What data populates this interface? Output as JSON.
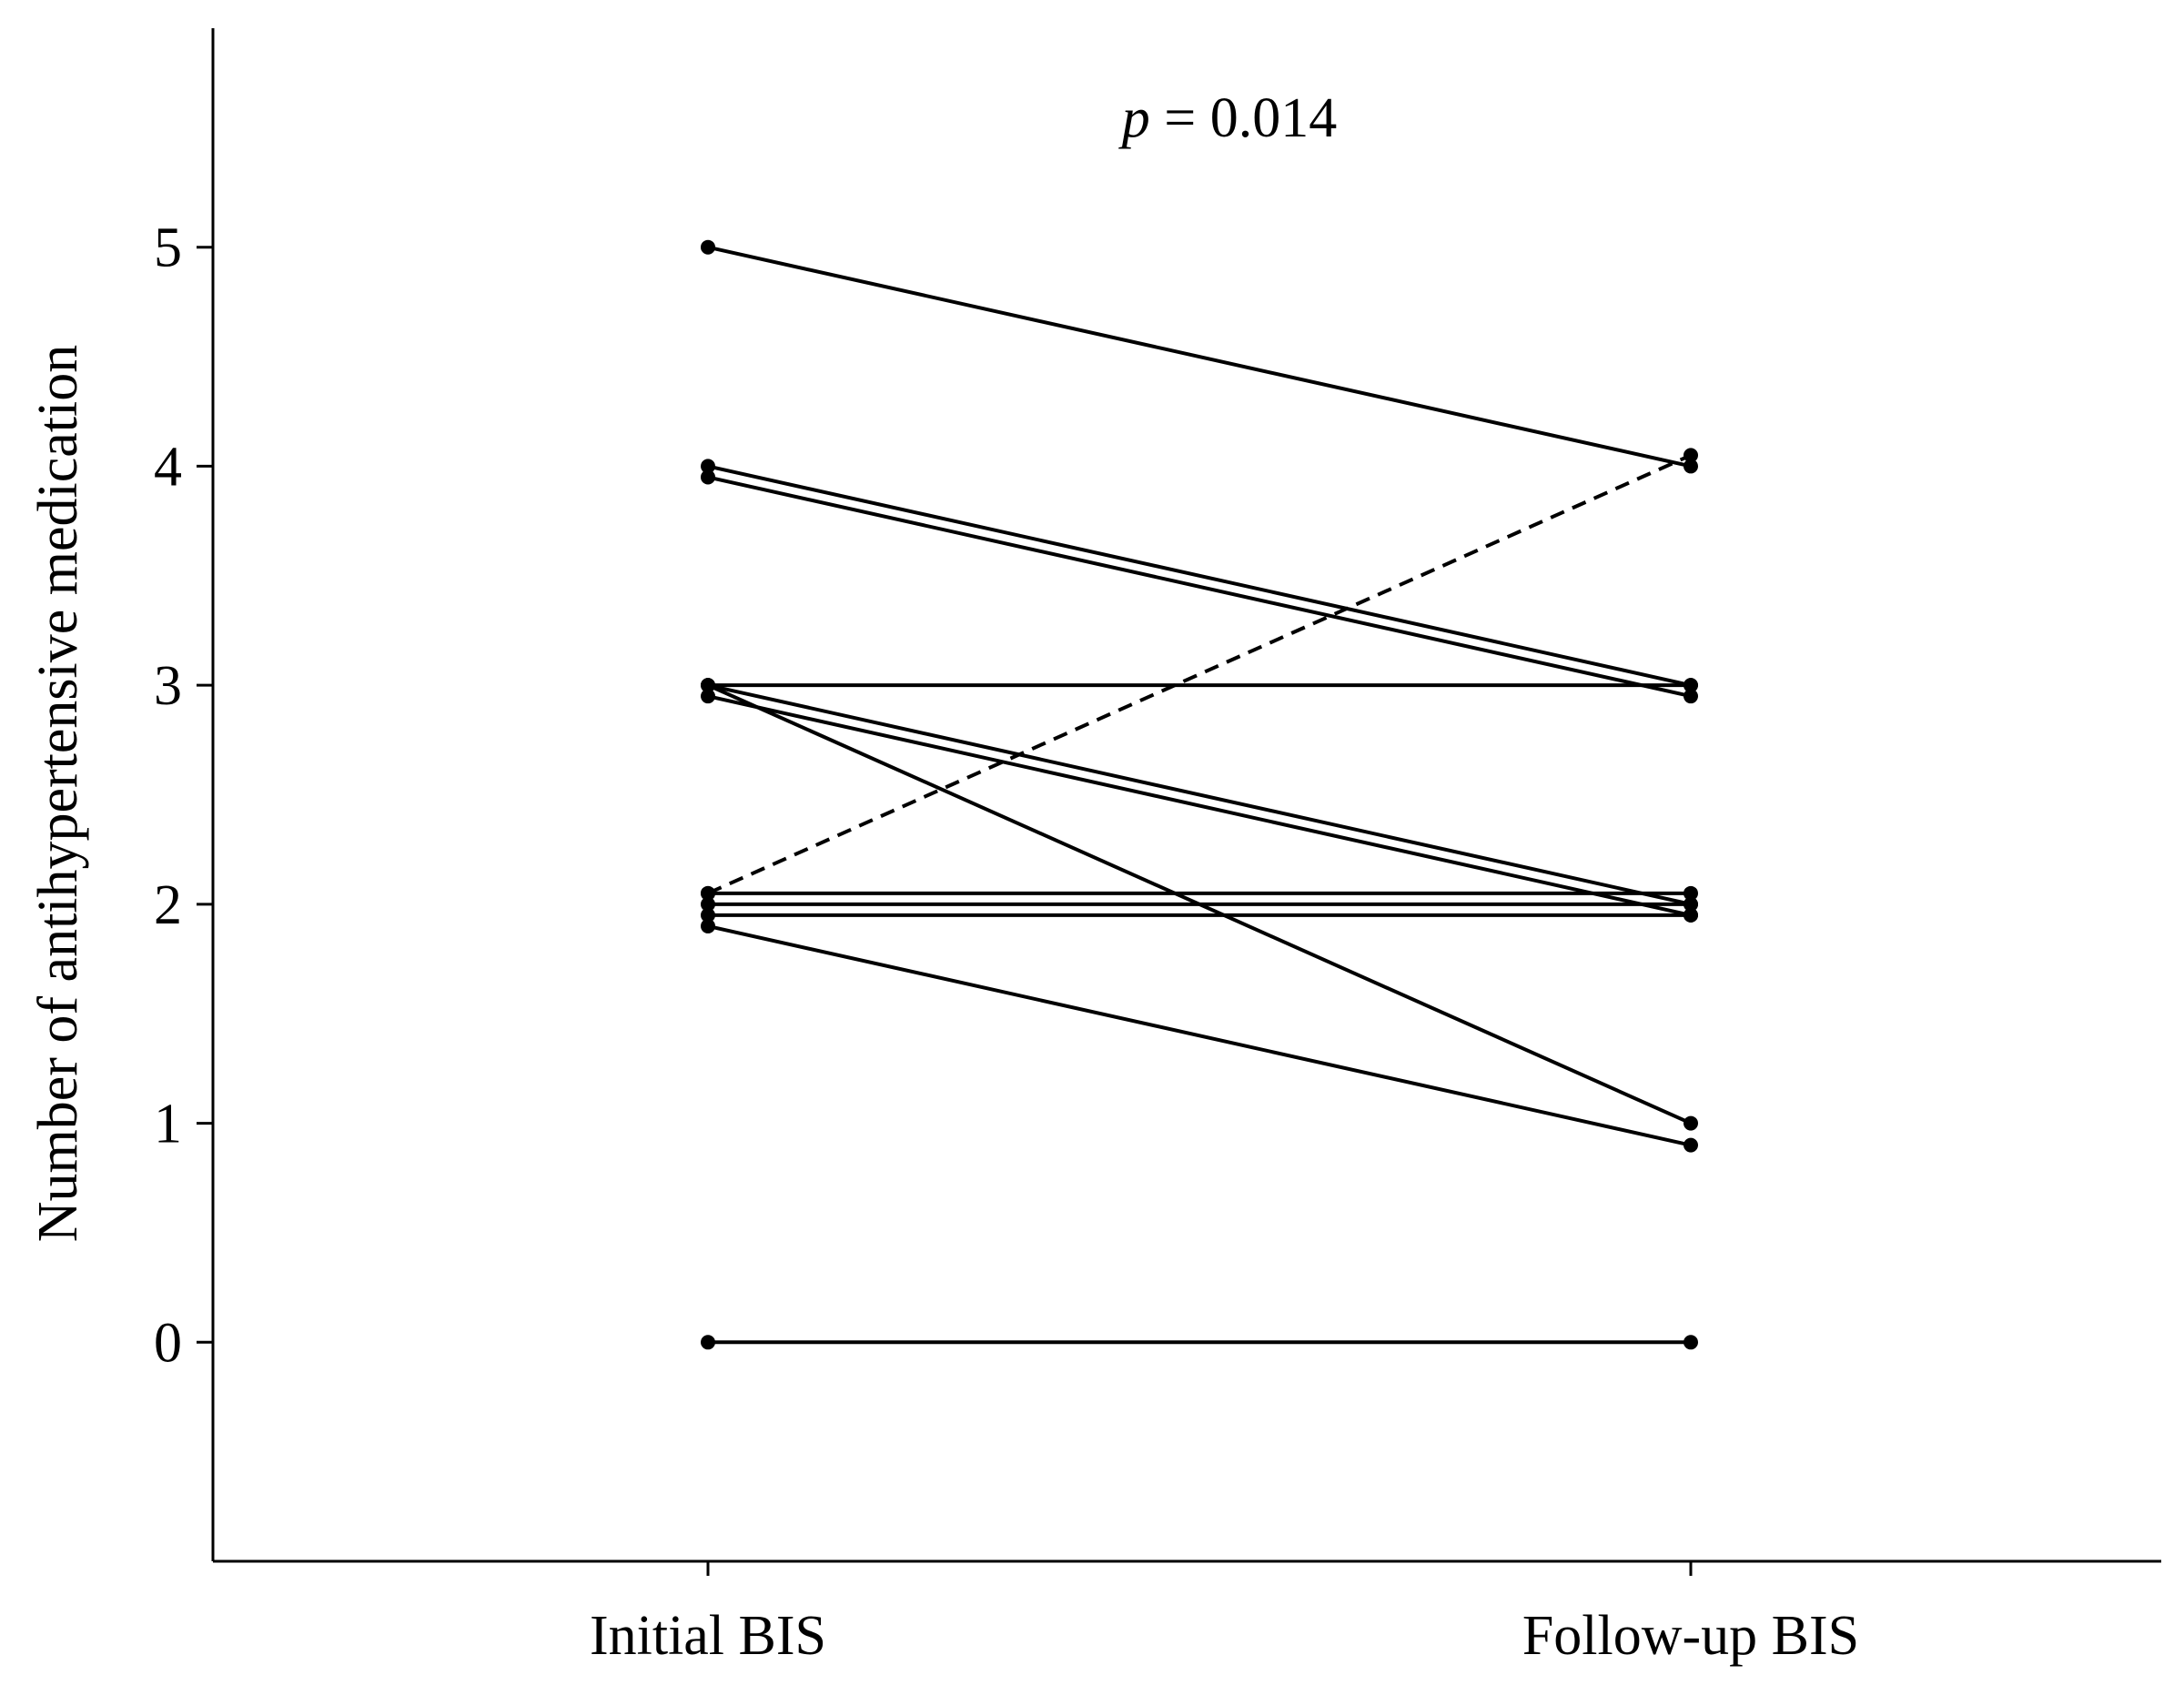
{
  "chart_data": {
    "type": "paired-line",
    "y_label": "Number of antihypertensive medication",
    "annotation": {
      "italic": "p",
      "text": "= 0.014"
    },
    "categories": [
      "Initial BIS",
      "Follow-up BIS"
    ],
    "ylim": [
      -1,
      6
    ],
    "yticks": [
      0,
      1,
      2,
      3,
      4,
      5
    ],
    "color": "#000000",
    "series": [
      {
        "values": [
          5,
          4
        ]
      },
      {
        "values": [
          4,
          3
        ]
      },
      {
        "values": [
          3.95,
          2.95
        ]
      },
      {
        "values": [
          3,
          3
        ]
      },
      {
        "values": [
          3,
          2
        ]
      },
      {
        "values": [
          2.95,
          1.95
        ]
      },
      {
        "values": [
          3,
          1
        ]
      },
      {
        "values": [
          2.05,
          4.05
        ],
        "dashed": true
      },
      {
        "values": [
          2.05,
          2.05
        ]
      },
      {
        "values": [
          2,
          2
        ]
      },
      {
        "values": [
          1.95,
          1.95
        ]
      },
      {
        "values": [
          1.9,
          0.9
        ]
      },
      {
        "values": [
          0,
          0
        ]
      }
    ]
  }
}
